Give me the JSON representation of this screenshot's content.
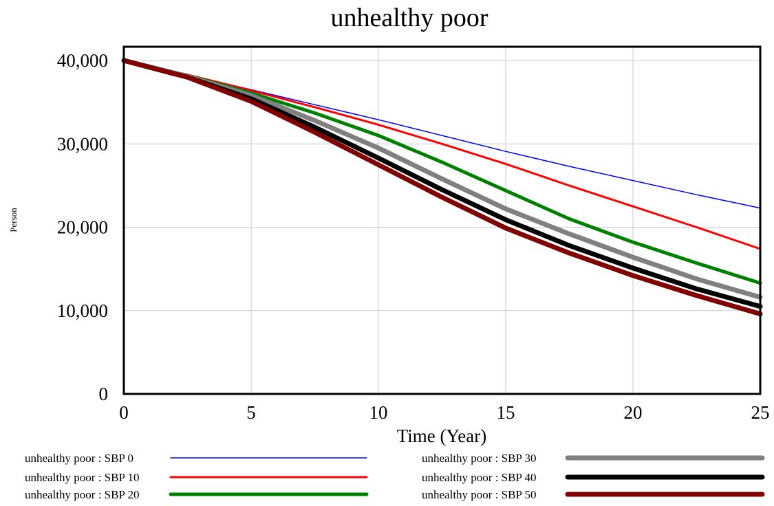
{
  "chart_data": {
    "type": "line",
    "title": "unhealthy poor",
    "xlabel": "Time (Year)",
    "ylabel": "Person",
    "xlim": [
      0,
      25
    ],
    "ylim": [
      0,
      40000
    ],
    "xticks": [
      0,
      5,
      10,
      15,
      20,
      25
    ],
    "yticks": [
      0,
      10000,
      20000,
      30000,
      40000
    ],
    "xtick_labels": [
      "0",
      "5",
      "10",
      "15",
      "20",
      "25"
    ],
    "ytick_labels": [
      "0",
      "10,000",
      "20,000",
      "30,000",
      "40,000"
    ],
    "grid": true,
    "legend_position": "bottom",
    "x": [
      0,
      2.5,
      5,
      7.5,
      10,
      12.5,
      15,
      17.5,
      20,
      22.5,
      25
    ],
    "series": [
      {
        "name": "unhealthy poor : SBP 0",
        "color": "#0000ff",
        "width": 1.5,
        "values": [
          40000,
          38300,
          36500,
          34700,
          32900,
          31000,
          29100,
          27300,
          25600,
          23900,
          22300
        ]
      },
      {
        "name": "unhealthy poor : SBP 10",
        "color": "#ff0000",
        "width": 3,
        "values": [
          40000,
          38300,
          36400,
          34400,
          32300,
          30000,
          27600,
          25000,
          22500,
          20000,
          17400
        ]
      },
      {
        "name": "unhealthy poor : SBP 20",
        "color": "#008000",
        "width": 5,
        "values": [
          40000,
          38200,
          36100,
          33700,
          31000,
          27800,
          24400,
          21000,
          18200,
          15700,
          13300
        ]
      },
      {
        "name": "unhealthy poor : SBP 30",
        "color": "#808080",
        "width": 7,
        "values": [
          40000,
          38100,
          35800,
          32800,
          29500,
          25800,
          22200,
          19200,
          16400,
          13800,
          11600
        ]
      },
      {
        "name": "unhealthy poor : SBP 40",
        "color": "#000000",
        "width": 7,
        "values": [
          40000,
          38000,
          35400,
          32000,
          28300,
          24500,
          20900,
          17800,
          15100,
          12600,
          10500
        ]
      },
      {
        "name": "unhealthy poor : SBP 50",
        "color": "#800000",
        "width": 7,
        "values": [
          40000,
          38000,
          35100,
          31400,
          27500,
          23600,
          19900,
          16900,
          14200,
          11800,
          9600
        ]
      }
    ]
  }
}
